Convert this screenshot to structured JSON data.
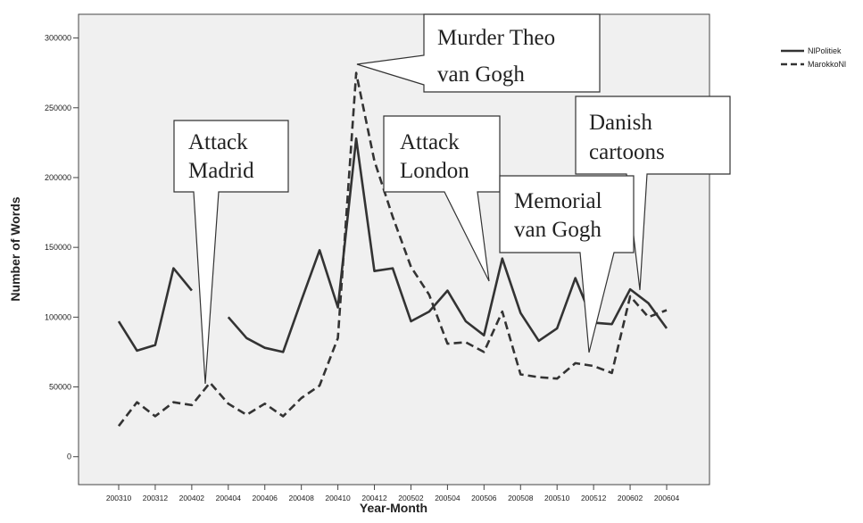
{
  "chart_data": {
    "type": "line",
    "x_label": "Year-Month",
    "y_label": "Number of Words",
    "categories": [
      "200310",
      null,
      "200312",
      null,
      "200402",
      null,
      "200404",
      null,
      "200406",
      null,
      "200408",
      null,
      "200410",
      null,
      "200412",
      null,
      "200502",
      null,
      "200504",
      null,
      "200506",
      null,
      "200508",
      null,
      "200510",
      null,
      "200512",
      null,
      "200602",
      null,
      "200604"
    ],
    "series": [
      {
        "name": "NlPolitiek",
        "color": "#333333",
        "dash": "solid",
        "values": [
          97000,
          76000,
          80000,
          135000,
          119000,
          null,
          100000,
          85000,
          78000,
          75000,
          112000,
          148000,
          107000,
          228000,
          133000,
          135000,
          97000,
          104000,
          119000,
          97000,
          87000,
          142000,
          103000,
          83000,
          92000,
          128000,
          96000,
          95000,
          120000,
          110000,
          92000
        ]
      },
      {
        "name": "MarokkoNl",
        "color": "#333333",
        "dash": "dashed",
        "values": [
          22000,
          39000,
          29000,
          39000,
          37000,
          53000,
          38000,
          30000,
          38000,
          29000,
          42000,
          51000,
          85000,
          275000,
          212000,
          172000,
          136000,
          116000,
          81000,
          82000,
          75000,
          104000,
          59000,
          57000,
          56000,
          67000,
          65000,
          60000,
          115000,
          100000,
          105000
        ]
      }
    ],
    "ylim": [
      -20000,
      317000
    ],
    "yticks": [
      0,
      50000,
      100000,
      150000,
      200000,
      250000,
      300000
    ],
    "legend": "right",
    "annotations": [
      {
        "lines": [
          "Attack",
          "Madrid"
        ]
      },
      {
        "lines": [
          "Murder Theo",
          "van Gogh"
        ]
      },
      {
        "lines": [
          "Attack",
          "London"
        ]
      },
      {
        "lines": [
          "Memorial",
          "van Gogh"
        ]
      },
      {
        "lines": [
          "Danish",
          "cartoons"
        ]
      }
    ]
  }
}
